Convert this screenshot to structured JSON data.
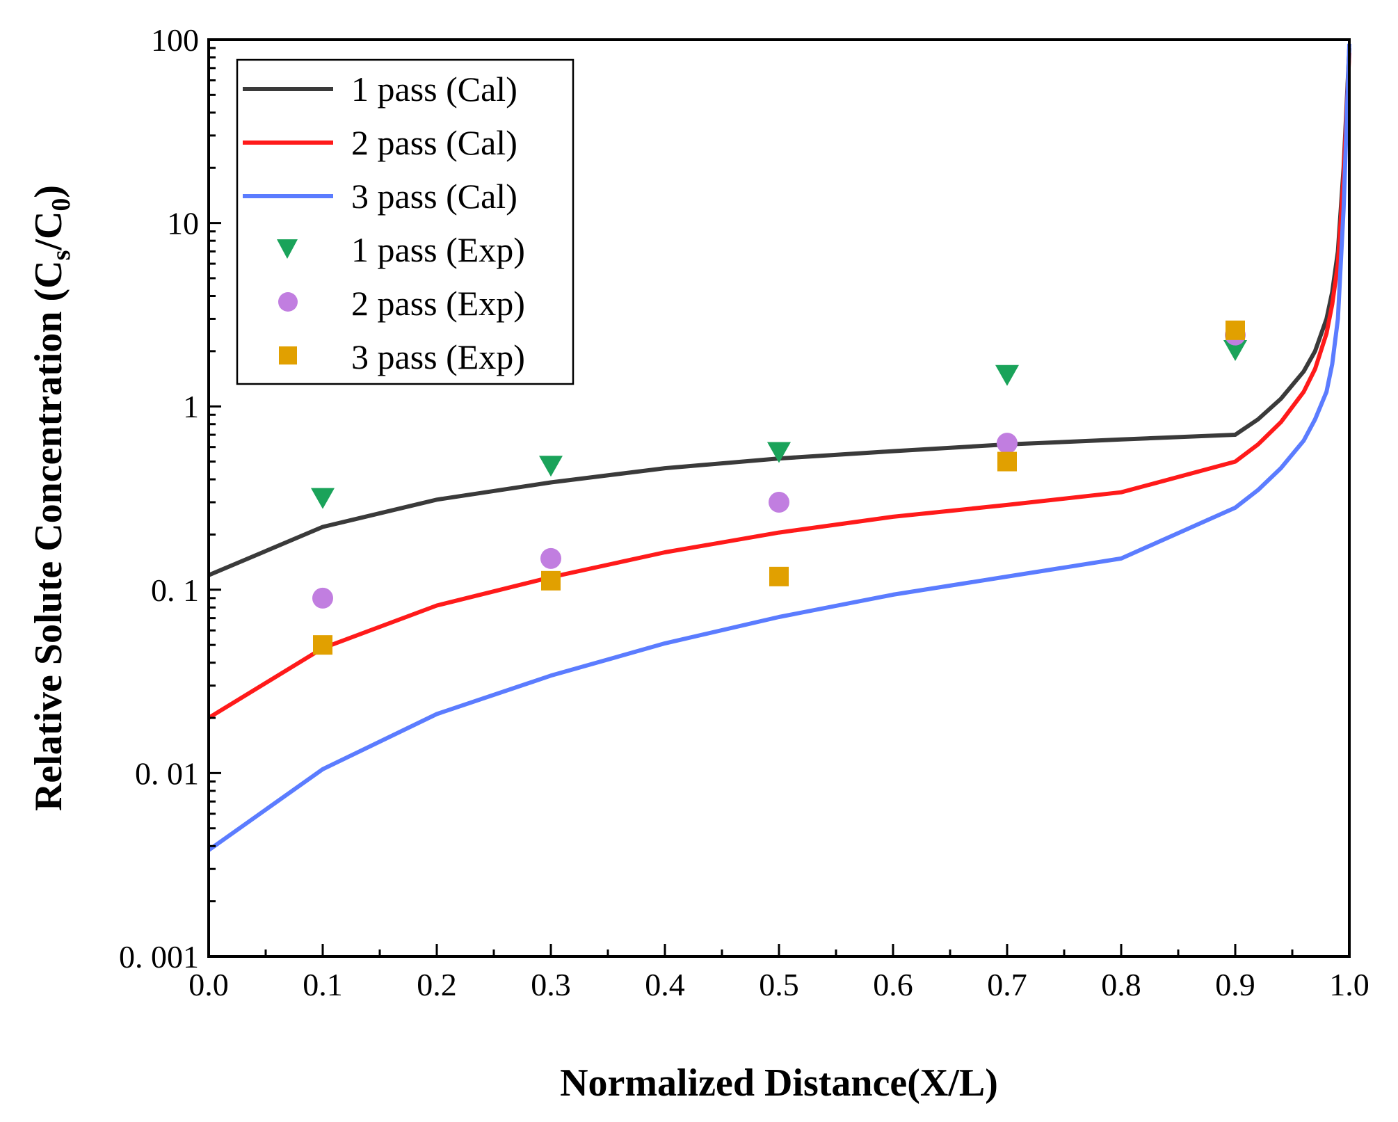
{
  "chart_data": {
    "type": "line",
    "xlabel": "Normalized Distance(X/L)",
    "ylabel": {
      "prefix": "Relative Solute Concentration (C",
      "sub1": "s",
      "mid": "/C",
      "sub2": "0",
      "suffix": ")"
    },
    "xlim": [
      0,
      1
    ],
    "ylim": [
      0.001,
      100
    ],
    "yscale": "log",
    "grid": false,
    "legend_position": "top-left",
    "x_tick_labels": [
      "0.0",
      "0.1",
      "0.2",
      "0.3",
      "0.4",
      "0.5",
      "0.6",
      "0.7",
      "0.8",
      "0.9",
      "1.0"
    ],
    "y_ticks": [
      {
        "value": 0.001,
        "label": "0. 001"
      },
      {
        "value": 0.01,
        "label": "0. 01"
      },
      {
        "value": 0.1,
        "label": "0. 1"
      },
      {
        "value": 1,
        "label": "1"
      },
      {
        "value": 10,
        "label": "10"
      },
      {
        "value": 100,
        "label": "100"
      }
    ],
    "series": [
      {
        "name": "1 pass (Cal)",
        "kind": "line",
        "color": "#3a3a3a",
        "x": [
          0,
          0.1,
          0.2,
          0.3,
          0.4,
          0.5,
          0.6,
          0.7,
          0.8,
          0.9,
          0.92,
          0.94,
          0.96,
          0.97,
          0.98,
          0.985,
          0.99,
          0.995,
          1.0
        ],
        "y": [
          0.12,
          0.22,
          0.31,
          0.385,
          0.46,
          0.52,
          0.57,
          0.62,
          0.66,
          0.7,
          0.85,
          1.1,
          1.55,
          2.0,
          3.0,
          4.2,
          7.0,
          20,
          90
        ]
      },
      {
        "name": "2 pass (Cal)",
        "kind": "line",
        "color": "#ff1a1a",
        "x": [
          0,
          0.1,
          0.2,
          0.3,
          0.4,
          0.5,
          0.6,
          0.7,
          0.8,
          0.9,
          0.92,
          0.94,
          0.96,
          0.97,
          0.98,
          0.985,
          0.99,
          0.995,
          1.0
        ],
        "y": [
          0.02,
          0.048,
          0.082,
          0.117,
          0.16,
          0.205,
          0.25,
          0.29,
          0.34,
          0.5,
          0.62,
          0.82,
          1.2,
          1.6,
          2.5,
          3.6,
          6.0,
          18,
          85
        ]
      },
      {
        "name": "3 pass (Cal)",
        "kind": "line",
        "color": "#5b7cff",
        "x": [
          0,
          0.1,
          0.2,
          0.3,
          0.4,
          0.5,
          0.6,
          0.7,
          0.8,
          0.9,
          0.92,
          0.94,
          0.96,
          0.97,
          0.98,
          0.985,
          0.99,
          0.995,
          1.0
        ],
        "y": [
          0.0038,
          0.0105,
          0.021,
          0.034,
          0.051,
          0.071,
          0.094,
          0.118,
          0.148,
          0.28,
          0.35,
          0.46,
          0.65,
          0.85,
          1.2,
          1.7,
          3.0,
          12,
          95
        ]
      },
      {
        "name": "1 pass (Exp)",
        "kind": "scatter",
        "marker": "triangle-down",
        "color": "#1aa35a",
        "x": [
          0.1,
          0.3,
          0.5,
          0.7,
          0.9
        ],
        "y": [
          0.32,
          0.48,
          0.57,
          1.5,
          2.05
        ]
      },
      {
        "name": "2 pass (Exp)",
        "kind": "scatter",
        "marker": "circle",
        "color": "#c17ee0",
        "x": [
          0.1,
          0.3,
          0.5,
          0.7,
          0.9
        ],
        "y": [
          0.09,
          0.148,
          0.3,
          0.63,
          2.45
        ]
      },
      {
        "name": "3 pass (Exp)",
        "kind": "scatter",
        "marker": "square",
        "color": "#e1a000",
        "x": [
          0.1,
          0.3,
          0.5,
          0.7,
          0.9
        ],
        "y": [
          0.05,
          0.112,
          0.118,
          0.5,
          2.6
        ]
      }
    ]
  }
}
